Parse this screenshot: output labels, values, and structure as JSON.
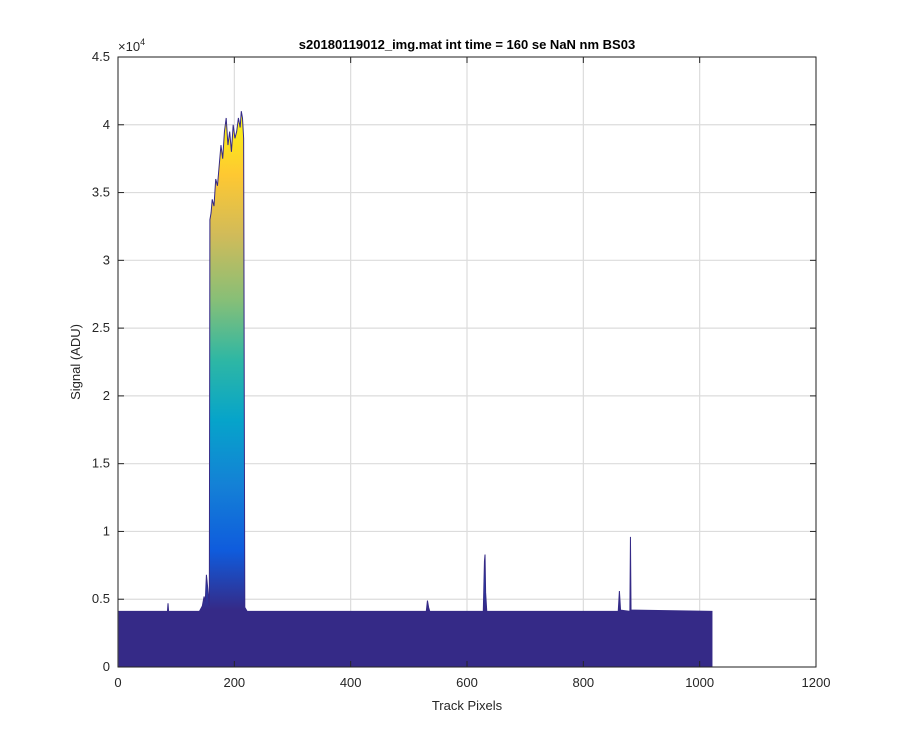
{
  "chart_data": {
    "type": "area",
    "title": "s20180119012_img.mat int time = 160 se  NaN nm BS03",
    "xlabel": "Track Pixels",
    "ylabel": "Signal (ADU)",
    "xlim": [
      0,
      1200
    ],
    "ylim": [
      0,
      45000
    ],
    "xticks": [
      0,
      200,
      400,
      600,
      800,
      1000,
      1200
    ],
    "yticks": [
      0,
      5000,
      10000,
      15000,
      20000,
      25000,
      30000,
      35000,
      40000,
      45000
    ],
    "ytick_labels": [
      "0",
      "0.5",
      "1",
      "1.5",
      "2",
      "2.5",
      "3",
      "3.5",
      "4",
      "4.5"
    ],
    "y_exponent_label": "×10",
    "y_exponent_power": "4",
    "grid": true,
    "colormap": "parula",
    "baseline": 4100,
    "series": [
      {
        "x": [
          1,
          85,
          86,
          87,
          140,
          145,
          148,
          150,
          152,
          155,
          157,
          158,
          160,
          162,
          165,
          168,
          171,
          174,
          177,
          180,
          183,
          186,
          189,
          192,
          195,
          198,
          201,
          204,
          207,
          210,
          212,
          214,
          216,
          218,
          222,
          530,
          532,
          534,
          536,
          628,
          630,
          631,
          632,
          634,
          790,
          860,
          862,
          864,
          880,
          881,
          882,
          1022
        ],
        "y": [
          4100,
          4100,
          4700,
          4100,
          4100,
          4500,
          5200,
          4800,
          6800,
          5500,
          4500,
          33000,
          33500,
          34500,
          34000,
          36000,
          35500,
          37000,
          38500,
          37500,
          39500,
          40500,
          38500,
          39500,
          38000,
          40000,
          39000,
          39500,
          40500,
          39800,
          41000,
          40500,
          39000,
          4400,
          4100,
          4100,
          4900,
          4400,
          4100,
          4100,
          7800,
          8300,
          5500,
          4100,
          4100,
          4100,
          5600,
          4200,
          4100,
          9600,
          4200,
          4100
        ]
      }
    ]
  }
}
